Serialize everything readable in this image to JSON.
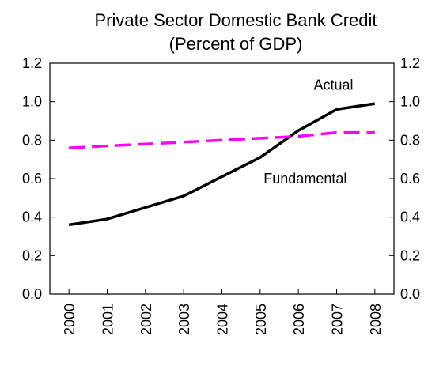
{
  "chart_data": {
    "type": "line",
    "title": "Private Sector Domestic Bank Credit",
    "subtitle": "(Percent of GDP)",
    "xlabel": "",
    "ylabel": "",
    "x": [
      "2000",
      "2001",
      "2002",
      "2003",
      "2004",
      "2005",
      "2006",
      "2007",
      "2008"
    ],
    "ylim": [
      0,
      1.2
    ],
    "y_ticks": [
      "0.0",
      "0.2",
      "0.4",
      "0.6",
      "0.8",
      "1.0",
      "1.2"
    ],
    "y_axis_right": true,
    "grid": false,
    "legend": "none",
    "series": [
      {
        "name": "Actual",
        "values": [
          0.36,
          0.39,
          0.45,
          0.51,
          0.61,
          0.71,
          0.85,
          0.96,
          0.99
        ],
        "color": "#000000",
        "style": "solid"
      },
      {
        "name": "Fundamental",
        "values": [
          0.76,
          0.77,
          0.78,
          0.79,
          0.8,
          0.81,
          0.82,
          0.84,
          0.84
        ],
        "color": "#ff00ff",
        "style": "dashed"
      }
    ]
  }
}
